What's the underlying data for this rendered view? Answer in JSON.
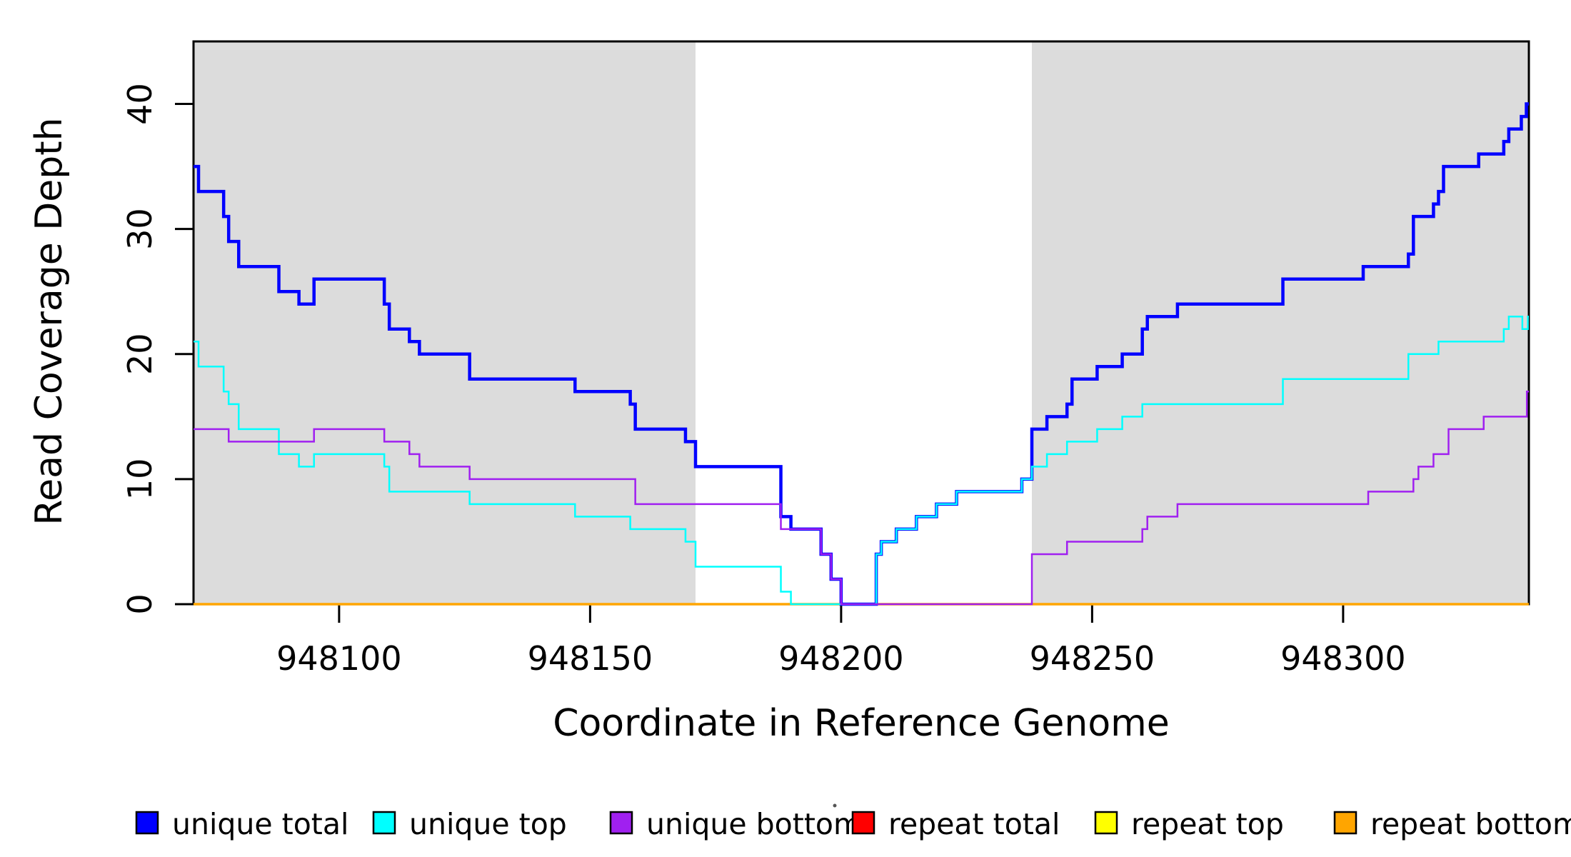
{
  "chart_data": {
    "type": "line",
    "subtype": "step",
    "title": "",
    "xlabel": "Coordinate in Reference Genome",
    "ylabel": "Read Coverage Depth",
    "x_range": [
      948071,
      948337
    ],
    "y_range": [
      0,
      45
    ],
    "x_ticks": [
      948100,
      948150,
      948200,
      948250,
      948300
    ],
    "y_ticks": [
      0,
      10,
      20,
      30,
      40
    ],
    "grid": false,
    "background_color": "#ffffff",
    "shaded_regions": [
      {
        "name": "left-gray-region",
        "x0": 948071,
        "x1": 948171,
        "color": "#dcdcdc"
      },
      {
        "name": "right-gray-region",
        "x0": 948238,
        "x1": 948337,
        "color": "#dcdcdc"
      }
    ],
    "series": [
      {
        "name": "repeat total",
        "color": "#ff0000",
        "width": 3.0,
        "points": [
          [
            948071,
            0
          ]
        ]
      },
      {
        "name": "repeat top",
        "color": "#ffff00",
        "width": 3.0,
        "points": [
          [
            948071,
            0
          ]
        ]
      },
      {
        "name": "repeat bottom",
        "color": "#ffa500",
        "width": 3.5,
        "points": [
          [
            948071,
            0
          ]
        ]
      },
      {
        "name": "unique total",
        "color": "#0000ff",
        "width": 4.5,
        "points": [
          [
            948071,
            35
          ],
          [
            948072,
            33
          ],
          [
            948077,
            31
          ],
          [
            948078,
            29
          ],
          [
            948080,
            27
          ],
          [
            948088,
            25
          ],
          [
            948092,
            24
          ],
          [
            948095,
            26
          ],
          [
            948109,
            24
          ],
          [
            948110,
            22
          ],
          [
            948114,
            21
          ],
          [
            948116,
            20
          ],
          [
            948126,
            18
          ],
          [
            948147,
            17
          ],
          [
            948158,
            16
          ],
          [
            948159,
            14
          ],
          [
            948169,
            13
          ],
          [
            948171,
            11
          ],
          [
            948188,
            7
          ],
          [
            948190,
            6
          ],
          [
            948196,
            4
          ],
          [
            948198,
            2
          ],
          [
            948200,
            0
          ],
          [
            948207,
            4
          ],
          [
            948208,
            5
          ],
          [
            948211,
            6
          ],
          [
            948215,
            7
          ],
          [
            948219,
            8
          ],
          [
            948223,
            9
          ],
          [
            948236,
            10
          ],
          [
            948238,
            14
          ],
          [
            948241,
            15
          ],
          [
            948245,
            16
          ],
          [
            948246,
            18
          ],
          [
            948251,
            19
          ],
          [
            948256,
            20
          ],
          [
            948260,
            22
          ],
          [
            948261,
            23
          ],
          [
            948267,
            24
          ],
          [
            948288,
            26
          ],
          [
            948304,
            27
          ],
          [
            948313,
            28
          ],
          [
            948314,
            31
          ],
          [
            948318,
            32
          ],
          [
            948319,
            33
          ],
          [
            948320,
            35
          ],
          [
            948327,
            36
          ],
          [
            948332,
            37
          ],
          [
            948333,
            38
          ],
          [
            948335.5,
            39
          ],
          [
            948336.5,
            40
          ]
        ]
      },
      {
        "name": "unique top",
        "color": "#00ffff",
        "width": 2.5,
        "points": [
          [
            948071,
            21
          ],
          [
            948072,
            19
          ],
          [
            948077,
            17
          ],
          [
            948078,
            16
          ],
          [
            948080,
            14
          ],
          [
            948088,
            12
          ],
          [
            948092,
            11
          ],
          [
            948095,
            12
          ],
          [
            948109,
            11
          ],
          [
            948110,
            9
          ],
          [
            948126,
            8
          ],
          [
            948147,
            7
          ],
          [
            948158,
            6
          ],
          [
            948169,
            5
          ],
          [
            948171,
            3
          ],
          [
            948188,
            1
          ],
          [
            948190,
            0
          ],
          [
            948207,
            4
          ],
          [
            948208,
            5
          ],
          [
            948211,
            6
          ],
          [
            948215,
            7
          ],
          [
            948219,
            8
          ],
          [
            948223,
            9
          ],
          [
            948236,
            10
          ],
          [
            948238,
            11
          ],
          [
            948241,
            12
          ],
          [
            948245,
            13
          ],
          [
            948251,
            14
          ],
          [
            948256,
            15
          ],
          [
            948260,
            16
          ],
          [
            948288,
            18
          ],
          [
            948313,
            20
          ],
          [
            948319,
            21
          ],
          [
            948332,
            22
          ],
          [
            948333,
            23
          ],
          [
            948335.7,
            22
          ],
          [
            948336.8,
            23
          ]
        ]
      },
      {
        "name": "unique bottom",
        "color": "#a020f0",
        "width": 2.5,
        "points": [
          [
            948071,
            14
          ],
          [
            948078,
            13
          ],
          [
            948095,
            14
          ],
          [
            948109,
            13
          ],
          [
            948114,
            12
          ],
          [
            948116,
            11
          ],
          [
            948126,
            10
          ],
          [
            948159,
            8
          ],
          [
            948188,
            6
          ],
          [
            948196,
            4
          ],
          [
            948198,
            2
          ],
          [
            948200,
            0
          ],
          [
            948238,
            4
          ],
          [
            948245,
            5
          ],
          [
            948260,
            6
          ],
          [
            948261,
            7
          ],
          [
            948267,
            8
          ],
          [
            948305,
            9
          ],
          [
            948314,
            10
          ],
          [
            948315,
            11
          ],
          [
            948318,
            12
          ],
          [
            948321,
            14
          ],
          [
            948328,
            15
          ],
          [
            948336.6,
            17
          ]
        ]
      }
    ],
    "legend": {
      "position": "bottom",
      "items": [
        {
          "label": "unique total",
          "color": "#0000ff"
        },
        {
          "label": "unique top",
          "color": "#00ffff"
        },
        {
          "label": "unique bottom",
          "color": "#a020f0"
        },
        {
          "label": "repeat total",
          "color": "#ff0000"
        },
        {
          "label": "repeat top",
          "color": "#ffff00"
        },
        {
          "label": "repeat bottom",
          "color": "#ffa500"
        }
      ]
    }
  }
}
